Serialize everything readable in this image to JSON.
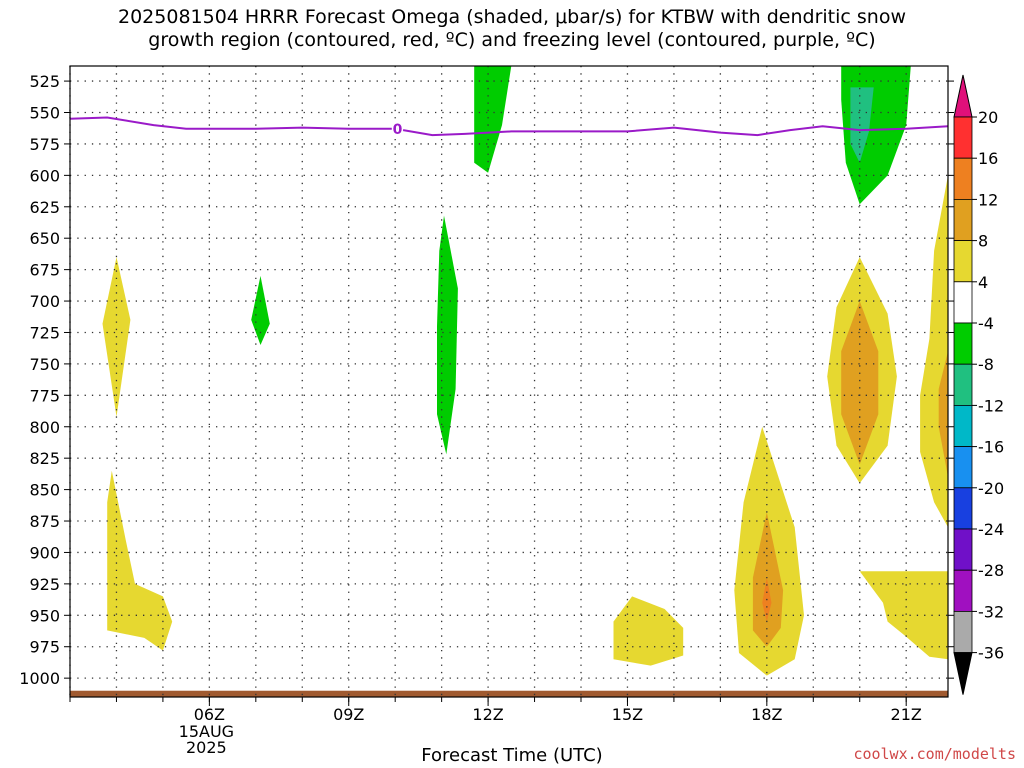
{
  "title_line1": "2025081504 HRRR Forecast Omega (shaded, μbar/s) for KTBW with dendritic snow",
  "title_line2": "growth region (contoured, red, ºC) and freezing level (contoured, purple, ºC)",
  "xlabel": "Forecast Time (UTC)",
  "credit": "coolwx.com/modelts",
  "date_label": [
    "15AUG",
    "2025"
  ],
  "chart_data": {
    "type": "heatmap",
    "x_hours": {
      "start": 3.0,
      "end": 21.9
    },
    "y_pressure_levels": [
      525,
      550,
      575,
      600,
      625,
      650,
      675,
      700,
      725,
      750,
      775,
      800,
      825,
      850,
      875,
      900,
      925,
      950,
      975,
      1000
    ],
    "ylim": [
      1015,
      513
    ],
    "x_ticks": [
      {
        "hour": 6,
        "label": "06Z"
      },
      {
        "hour": 9,
        "label": "09Z"
      },
      {
        "hour": 12,
        "label": "12Z"
      },
      {
        "hour": 15,
        "label": "15Z"
      },
      {
        "hour": 18,
        "label": "18Z"
      },
      {
        "hour": 21,
        "label": "21Z"
      }
    ],
    "grid": true,
    "colorbar": {
      "labels": [
        "20",
        "16",
        "12",
        "8",
        "4",
        "-4",
        "-8",
        "-12",
        "-16",
        "-20",
        "-24",
        "-28",
        "-32",
        "-36"
      ],
      "colors": [
        "#ff3030",
        "#ee8020",
        "#e0a020",
        "#e6d830",
        "#ffffff",
        "#00cc00",
        "#20c080",
        "#00b8c8",
        "#1890f0",
        "#1840e0",
        "#7010c8",
        "#a010c0",
        "#aaaaaa"
      ],
      "top_arrow_color": "#e0107a",
      "bottom_arrow_color": "#000000"
    },
    "freezing_level": {
      "label": "0",
      "color": "#9a1ac8",
      "points": [
        [
          3.0,
          555
        ],
        [
          3.8,
          554
        ],
        [
          4.8,
          560
        ],
        [
          5.5,
          563
        ],
        [
          7.0,
          563
        ],
        [
          8.0,
          562
        ],
        [
          9.0,
          563
        ],
        [
          10.0,
          563
        ],
        [
          10.8,
          568
        ],
        [
          11.5,
          567
        ],
        [
          12.5,
          565
        ],
        [
          13.5,
          565
        ],
        [
          15.0,
          565
        ],
        [
          16.0,
          562
        ],
        [
          17.0,
          566
        ],
        [
          17.8,
          568
        ],
        [
          18.5,
          564
        ],
        [
          19.2,
          561
        ],
        [
          20.0,
          564
        ],
        [
          21.0,
          563
        ],
        [
          21.9,
          561
        ]
      ]
    },
    "omega_regions": [
      {
        "level": 4,
        "color": "#e6d830",
        "points": [
          [
            4.0,
            665
          ],
          [
            4.3,
            715
          ],
          [
            4.0,
            792
          ],
          [
            3.7,
            718
          ]
        ]
      },
      {
        "level": 4,
        "color": "#e6d830",
        "points": [
          [
            3.9,
            835
          ],
          [
            4.2,
            890
          ],
          [
            4.4,
            925
          ],
          [
            5.0,
            935
          ],
          [
            5.2,
            955
          ],
          [
            5.0,
            978
          ],
          [
            4.6,
            968
          ],
          [
            3.8,
            962
          ],
          [
            3.8,
            860
          ]
        ]
      },
      {
        "level": -4,
        "color": "#00cc00",
        "points": [
          [
            7.1,
            680
          ],
          [
            7.3,
            718
          ],
          [
            7.1,
            735
          ],
          [
            6.9,
            715
          ]
        ]
      },
      {
        "level": -4,
        "color": "#00cc00",
        "points": [
          [
            11.05,
            632
          ],
          [
            11.35,
            690
          ],
          [
            11.3,
            770
          ],
          [
            11.1,
            822
          ],
          [
            10.9,
            790
          ],
          [
            10.9,
            720
          ],
          [
            10.95,
            660
          ]
        ]
      },
      {
        "level": -4,
        "color": "#00cc00",
        "points": [
          [
            11.7,
            513
          ],
          [
            12.5,
            513
          ],
          [
            12.3,
            560
          ],
          [
            12.0,
            598
          ],
          [
            11.7,
            590
          ],
          [
            11.7,
            540
          ]
        ]
      },
      {
        "level": -4,
        "color": "#00cc00",
        "points": [
          [
            19.6,
            513
          ],
          [
            21.1,
            513
          ],
          [
            21.0,
            560
          ],
          [
            20.6,
            600
          ],
          [
            20.0,
            623
          ],
          [
            19.7,
            590
          ],
          [
            19.6,
            540
          ]
        ]
      },
      {
        "level": -8,
        "color": "#20c080",
        "points": [
          [
            19.8,
            530
          ],
          [
            20.3,
            530
          ],
          [
            20.2,
            565
          ],
          [
            20.0,
            590
          ],
          [
            19.8,
            575
          ]
        ]
      },
      {
        "level": 4,
        "color": "#e6d830",
        "points": [
          [
            15.1,
            935
          ],
          [
            15.8,
            945
          ],
          [
            16.2,
            960
          ],
          [
            16.2,
            982
          ],
          [
            15.5,
            990
          ],
          [
            14.7,
            985
          ],
          [
            14.7,
            955
          ]
        ]
      },
      {
        "level": 4,
        "color": "#e6d830",
        "points": [
          [
            17.9,
            800
          ],
          [
            18.6,
            880
          ],
          [
            18.8,
            950
          ],
          [
            18.6,
            985
          ],
          [
            18.0,
            998
          ],
          [
            17.4,
            980
          ],
          [
            17.3,
            930
          ],
          [
            17.5,
            860
          ]
        ]
      },
      {
        "level": 8,
        "color": "#e0a020",
        "points": [
          [
            18.0,
            868
          ],
          [
            18.35,
            930
          ],
          [
            18.3,
            960
          ],
          [
            18.0,
            975
          ],
          [
            17.7,
            962
          ],
          [
            17.7,
            920
          ]
        ]
      },
      {
        "level": 12,
        "color": "#ee8020",
        "points": [
          [
            18.0,
            920
          ],
          [
            18.1,
            940
          ],
          [
            18.0,
            955
          ],
          [
            17.9,
            940
          ]
        ]
      },
      {
        "level": 4,
        "color": "#e6d830",
        "points": [
          [
            20.0,
            665
          ],
          [
            20.6,
            710
          ],
          [
            20.8,
            760
          ],
          [
            20.6,
            815
          ],
          [
            20.0,
            845
          ],
          [
            19.5,
            815
          ],
          [
            19.3,
            760
          ],
          [
            19.5,
            705
          ]
        ]
      },
      {
        "level": 8,
        "color": "#e0a020",
        "points": [
          [
            20.0,
            700
          ],
          [
            20.4,
            740
          ],
          [
            20.4,
            790
          ],
          [
            20.0,
            830
          ],
          [
            19.6,
            790
          ],
          [
            19.6,
            740
          ]
        ]
      },
      {
        "level": 4,
        "color": "#e6d830",
        "points": [
          [
            21.9,
            600
          ],
          [
            21.9,
            880
          ],
          [
            21.6,
            860
          ],
          [
            21.3,
            820
          ],
          [
            21.3,
            775
          ],
          [
            21.5,
            730
          ],
          [
            21.6,
            660
          ]
        ]
      },
      {
        "level": 8,
        "color": "#e0a020",
        "points": [
          [
            21.9,
            740
          ],
          [
            21.9,
            840
          ],
          [
            21.7,
            800
          ],
          [
            21.7,
            770
          ]
        ]
      },
      {
        "level": 4,
        "color": "#e6d830",
        "points": [
          [
            20.0,
            915
          ],
          [
            21.9,
            915
          ],
          [
            21.9,
            985
          ],
          [
            21.5,
            983
          ],
          [
            21.0,
            967
          ],
          [
            20.6,
            955
          ],
          [
            20.5,
            940
          ]
        ]
      }
    ],
    "surface_band": {
      "pressure_top": 1010,
      "pressure_bottom": 1015,
      "color": "#a05a30"
    }
  }
}
